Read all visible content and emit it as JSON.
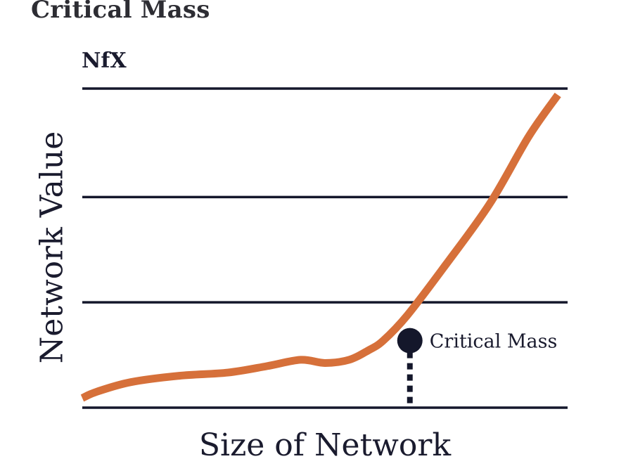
{
  "title": "Critical Mass",
  "logo_text": "NfX",
  "chart_data": {
    "type": "line",
    "xlabel": "Size of Network",
    "ylabel": "Network Value",
    "xlim": [
      0,
      1
    ],
    "ylim": [
      0,
      1
    ],
    "grid": true,
    "y_gridlines": [
      0,
      0.33,
      0.66,
      1.0
    ],
    "series": [
      {
        "color": "#d6703a",
        "x": [
          0,
          0.03,
          0.1,
          0.2,
          0.3,
          0.38,
          0.45,
          0.5,
          0.55,
          0.59,
          0.62,
          0.67,
          0.75,
          0.84,
          0.92,
          0.98
        ],
        "y": [
          0.03,
          0.05,
          0.08,
          0.1,
          0.11,
          0.13,
          0.15,
          0.14,
          0.15,
          0.18,
          0.21,
          0.29,
          0.45,
          0.64,
          0.85,
          0.98
        ]
      }
    ],
    "annotation": {
      "label": "Critical Mass",
      "x": 0.675,
      "y": 0.21,
      "marker_color": "#14172b",
      "dashed_drop_line": true
    }
  }
}
